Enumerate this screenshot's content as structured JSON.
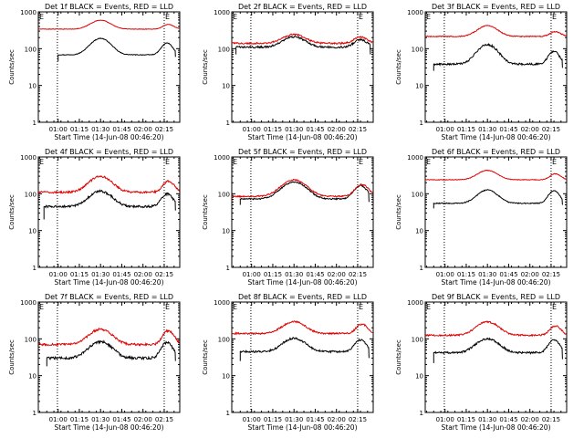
{
  "chart_data": [
    {
      "type": "line",
      "title": "Det 1f BLACK = Events, RED = LLD",
      "xlabel": "Start Time (14-Jun-08 00:46:20)",
      "ylabel": "Counts/sec",
      "corner_label": "E",
      "x_tick_labels": [
        "01:00",
        "01:15",
        "01:30",
        "01:45",
        "02:00",
        "02:15"
      ],
      "x_ticks_min": [
        14,
        29,
        44,
        59,
        74,
        89
      ],
      "xlim": [
        0,
        100
      ],
      "ylim": [
        1,
        1000
      ],
      "y_tick_labels": [
        "1",
        "10",
        "100",
        "1000"
      ],
      "y_ticks": [
        1,
        10,
        100,
        1000
      ],
      "vlines_min": [
        13.5,
        89
      ],
      "series": [
        {
          "name": "Events",
          "color": "#000000",
          "start": 14,
          "end": 97,
          "base": 68,
          "peaks": [
            {
              "x": 44,
              "amp": 2.8,
              "w": 9
            },
            {
              "x": 91,
              "amp": 2.1,
              "w": 5
            }
          ],
          "noise": 0.02,
          "start_drop": 45,
          "end_drop": 60
        },
        {
          "name": "LLD",
          "color": "#e00000",
          "start": 0,
          "end": 100,
          "base": 340,
          "peaks": [
            {
              "x": 44,
              "amp": 1.75,
              "w": 9
            },
            {
              "x": 92,
              "amp": 1.35,
              "w": 5
            }
          ],
          "noise": 0.015
        }
      ]
    },
    {
      "type": "line",
      "title": "Det 2f BLACK = Events, RED = LLD",
      "xlabel": "Start Time (14-Jun-08 00:46:20)",
      "ylabel": "Counts/sec",
      "corner_label": "E",
      "x_tick_labels": [
        "01:00",
        "01:15",
        "01:30",
        "01:45",
        "02:00",
        "02:15"
      ],
      "x_ticks_min": [
        14,
        29,
        44,
        59,
        74,
        89
      ],
      "xlim": [
        0,
        100
      ],
      "ylim": [
        1,
        1000
      ],
      "y_tick_labels": [
        "1",
        "10",
        "100",
        "1000"
      ],
      "y_ticks": [
        1,
        10,
        100,
        1000
      ],
      "vlines_min": [
        13.5,
        89
      ],
      "series": [
        {
          "name": "Events",
          "color": "#000000",
          "start": 3,
          "end": 98,
          "base": 110,
          "peaks": [
            {
              "x": 44,
              "amp": 1.9,
              "w": 10
            },
            {
              "x": 91,
              "amp": 1.6,
              "w": 6
            }
          ],
          "noise": 0.06,
          "start_drop": 70,
          "end_drop": 70
        },
        {
          "name": "LLD",
          "color": "#e00000",
          "start": 0,
          "end": 100,
          "base": 140,
          "peaks": [
            {
              "x": 44,
              "amp": 1.75,
              "w": 10
            },
            {
              "x": 91,
              "amp": 1.5,
              "w": 6
            }
          ],
          "noise": 0.05
        }
      ]
    },
    {
      "type": "line",
      "title": "Det 3f BLACK = Events, RED = LLD",
      "xlabel": "Start Time (14-Jun-08 00:46:20)",
      "ylabel": "Counts/sec",
      "corner_label": "E",
      "x_tick_labels": [
        "01:00",
        "01:15",
        "01:30",
        "01:45",
        "02:00",
        "02:15"
      ],
      "x_ticks_min": [
        14,
        29,
        44,
        59,
        74,
        89
      ],
      "xlim": [
        0,
        100
      ],
      "ylim": [
        1,
        1000
      ],
      "y_tick_labels": [
        "1",
        "10",
        "100",
        "1000"
      ],
      "y_ticks": [
        1,
        10,
        100,
        1000
      ],
      "vlines_min": [
        13.5,
        89
      ],
      "series": [
        {
          "name": "Events",
          "color": "#000000",
          "start": 6,
          "end": 97,
          "base": 38,
          "peaks": [
            {
              "x": 44,
              "amp": 3.4,
              "w": 9
            },
            {
              "x": 91,
              "amp": 2.2,
              "w": 5
            }
          ],
          "noise": 0.06,
          "start_drop": 25,
          "end_drop": 30
        },
        {
          "name": "LLD",
          "color": "#e00000",
          "start": 0,
          "end": 100,
          "base": 215,
          "peaks": [
            {
              "x": 44,
              "amp": 1.95,
              "w": 9
            },
            {
              "x": 92,
              "amp": 1.35,
              "w": 5
            }
          ],
          "noise": 0.03
        }
      ]
    },
    {
      "type": "line",
      "title": "Det 4f BLACK = Events, RED = LLD",
      "xlabel": "Start Time (14-Jun-08 00:46:20)",
      "ylabel": "Counts/sec",
      "corner_label": "E",
      "x_tick_labels": [
        "01:00",
        "01:15",
        "01:30",
        "01:45",
        "02:00",
        "02:15"
      ],
      "x_ticks_min": [
        14,
        29,
        44,
        59,
        74,
        89
      ],
      "xlim": [
        0,
        100
      ],
      "ylim": [
        1,
        1000
      ],
      "y_tick_labels": [
        "1",
        "10",
        "100",
        "1000"
      ],
      "y_ticks": [
        1,
        10,
        100,
        1000
      ],
      "vlines_min": [
        13.5,
        89
      ],
      "series": [
        {
          "name": "Events",
          "color": "#000000",
          "start": 4,
          "end": 97,
          "base": 45,
          "peaks": [
            {
              "x": 44,
              "amp": 2.6,
              "w": 10
            },
            {
              "x": 91,
              "amp": 2.2,
              "w": 5
            }
          ],
          "noise": 0.07,
          "start_drop": 20,
          "end_drop": 35
        },
        {
          "name": "LLD",
          "color": "#e00000",
          "start": 0,
          "end": 100,
          "base": 110,
          "peaks": [
            {
              "x": 44,
              "amp": 2.7,
              "w": 10
            },
            {
              "x": 92,
              "amp": 2.0,
              "w": 5
            }
          ],
          "noise": 0.06
        }
      ]
    },
    {
      "type": "line",
      "title": "Det 5f BLACK = Events, RED = LLD",
      "xlabel": "Start Time (14-Jun-08 00:46:20)",
      "ylabel": "Counts/sec",
      "corner_label": "E",
      "x_tick_labels": [
        "01:00",
        "01:15",
        "01:30",
        "01:45",
        "02:00",
        "02:15"
      ],
      "x_ticks_min": [
        14,
        29,
        44,
        59,
        74,
        89
      ],
      "xlim": [
        0,
        100
      ],
      "ylim": [
        1,
        1000
      ],
      "y_tick_labels": [
        "1",
        "10",
        "100",
        "1000"
      ],
      "y_ticks": [
        1,
        10,
        100,
        1000
      ],
      "vlines_min": [
        13.5,
        89
      ],
      "series": [
        {
          "name": "Events",
          "color": "#000000",
          "start": 6,
          "end": 97,
          "base": 72,
          "peaks": [
            {
              "x": 44,
              "amp": 2.9,
              "w": 11
            },
            {
              "x": 91,
              "amp": 2.3,
              "w": 6
            }
          ],
          "noise": 0.04,
          "start_drop": 50,
          "end_drop": 60
        },
        {
          "name": "LLD",
          "color": "#e00000",
          "start": 0,
          "end": 100,
          "base": 85,
          "peaks": [
            {
              "x": 44,
              "amp": 2.8,
              "w": 11
            },
            {
              "x": 92,
              "amp": 2.1,
              "w": 6
            }
          ],
          "noise": 0.04
        }
      ]
    },
    {
      "type": "line",
      "title": "Det 6f BLACK = Events, RED = LLD",
      "xlabel": "Start Time (14-Jun-08 00:46:20)",
      "ylabel": "Counts/sec",
      "corner_label": "E",
      "x_tick_labels": [
        "01:00",
        "01:15",
        "01:30",
        "01:45",
        "02:00",
        "02:15"
      ],
      "x_ticks_min": [
        14,
        29,
        44,
        59,
        74,
        89
      ],
      "xlim": [
        0,
        100
      ],
      "ylim": [
        1,
        1000
      ],
      "y_tick_labels": [
        "1",
        "10",
        "100",
        "1000"
      ],
      "y_ticks": [
        1,
        10,
        100,
        1000
      ],
      "vlines_min": [
        13.5,
        89
      ],
      "series": [
        {
          "name": "Events",
          "color": "#000000",
          "start": 6,
          "end": 97,
          "base": 55,
          "peaks": [
            {
              "x": 44,
              "amp": 2.3,
              "w": 9
            },
            {
              "x": 91,
              "amp": 2.2,
              "w": 5
            }
          ],
          "noise": 0.03,
          "start_drop": 40,
          "end_drop": 50
        },
        {
          "name": "LLD",
          "color": "#e00000",
          "start": 0,
          "end": 100,
          "base": 240,
          "peaks": [
            {
              "x": 44,
              "amp": 1.8,
              "w": 9
            },
            {
              "x": 92,
              "amp": 1.45,
              "w": 5
            }
          ],
          "noise": 0.02
        }
      ]
    },
    {
      "type": "line",
      "title": "Det 7f BLACK = Events, RED = LLD",
      "xlabel": "Start Time (14-Jun-08 00:46:20)",
      "ylabel": "Counts/sec",
      "corner_label": "E",
      "x_tick_labels": [
        "01:00",
        "01:15",
        "01:30",
        "01:45",
        "02:00",
        "02:15"
      ],
      "x_ticks_min": [
        14,
        29,
        44,
        59,
        74,
        89
      ],
      "xlim": [
        0,
        100
      ],
      "ylim": [
        1,
        1000
      ],
      "y_tick_labels": [
        "1",
        "10",
        "100",
        "1000"
      ],
      "y_ticks": [
        1,
        10,
        100,
        1000
      ],
      "vlines_min": [
        13.5,
        89
      ],
      "series": [
        {
          "name": "Events",
          "color": "#000000",
          "start": 6,
          "end": 97,
          "base": 30,
          "peaks": [
            {
              "x": 44,
              "amp": 2.8,
              "w": 10
            },
            {
              "x": 91,
              "amp": 2.7,
              "w": 5
            }
          ],
          "noise": 0.08,
          "start_drop": 18,
          "end_drop": 25
        },
        {
          "name": "LLD",
          "color": "#e00000",
          "start": 0,
          "end": 100,
          "base": 70,
          "peaks": [
            {
              "x": 44,
              "amp": 2.6,
              "w": 10
            },
            {
              "x": 92,
              "amp": 2.4,
              "w": 5
            }
          ],
          "noise": 0.07
        }
      ]
    },
    {
      "type": "line",
      "title": "Det 8f BLACK = Events, RED = LLD",
      "xlabel": "Start Time (14-Jun-08 00:46:20)",
      "ylabel": "Counts/sec",
      "corner_label": "E",
      "x_tick_labels": [
        "01:00",
        "01:15",
        "01:30",
        "01:45",
        "02:00",
        "02:15"
      ],
      "x_ticks_min": [
        14,
        29,
        44,
        59,
        74,
        89
      ],
      "xlim": [
        0,
        100
      ],
      "ylim": [
        1,
        1000
      ],
      "y_tick_labels": [
        "1",
        "10",
        "100",
        "1000"
      ],
      "y_ticks": [
        1,
        10,
        100,
        1000
      ],
      "vlines_min": [
        13.5,
        89
      ],
      "series": [
        {
          "name": "Events",
          "color": "#000000",
          "start": 6,
          "end": 97,
          "base": 45,
          "peaks": [
            {
              "x": 44,
              "amp": 2.3,
              "w": 10
            },
            {
              "x": 91,
              "amp": 2.1,
              "w": 5
            }
          ],
          "noise": 0.06,
          "start_drop": 25,
          "end_drop": 30
        },
        {
          "name": "LLD",
          "color": "#e00000",
          "start": 0,
          "end": 100,
          "base": 140,
          "peaks": [
            {
              "x": 44,
              "amp": 2.1,
              "w": 10
            },
            {
              "x": 92,
              "amp": 1.8,
              "w": 5
            }
          ],
          "noise": 0.05
        }
      ]
    },
    {
      "type": "line",
      "title": "Det 9f BLACK = Events, RED = LLD",
      "xlabel": "Start Time (14-Jun-08 00:46:20)",
      "ylabel": "Counts/sec",
      "corner_label": "E",
      "x_tick_labels": [
        "01:00",
        "01:15",
        "01:30",
        "01:45",
        "02:00",
        "02:15"
      ],
      "x_ticks_min": [
        14,
        29,
        44,
        59,
        74,
        89
      ],
      "xlim": [
        0,
        100
      ],
      "ylim": [
        1,
        1000
      ],
      "y_tick_labels": [
        "1",
        "10",
        "100",
        "1000"
      ],
      "y_ticks": [
        1,
        10,
        100,
        1000
      ],
      "vlines_min": [
        13.5,
        89
      ],
      "series": [
        {
          "name": "Events",
          "color": "#000000",
          "start": 6,
          "end": 97,
          "base": 42,
          "peaks": [
            {
              "x": 44,
              "amp": 2.4,
              "w": 10
            },
            {
              "x": 91,
              "amp": 2.2,
              "w": 5
            }
          ],
          "noise": 0.06,
          "start_drop": 22,
          "end_drop": 28
        },
        {
          "name": "LLD",
          "color": "#e00000",
          "start": 0,
          "end": 100,
          "base": 125,
          "peaks": [
            {
              "x": 44,
              "amp": 2.3,
              "w": 10
            },
            {
              "x": 92,
              "amp": 1.8,
              "w": 5
            }
          ],
          "noise": 0.05
        }
      ]
    }
  ]
}
